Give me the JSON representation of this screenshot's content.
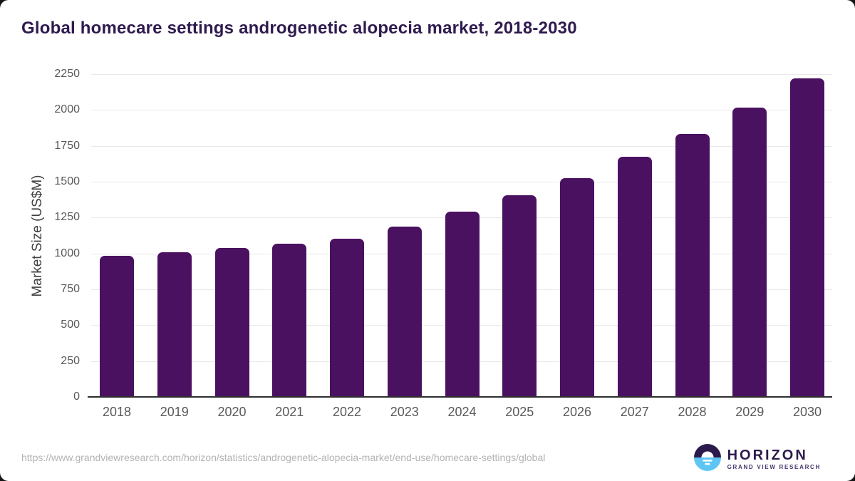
{
  "page": {
    "title": "Global homecare settings androgenetic alopecia market, 2018-2030"
  },
  "chart_data": {
    "type": "bar",
    "title": "Global homecare settings androgenetic alopecia market, 2018-2030",
    "categories": [
      "2018",
      "2019",
      "2020",
      "2021",
      "2022",
      "2023",
      "2024",
      "2025",
      "2026",
      "2027",
      "2028",
      "2029",
      "2030"
    ],
    "values": [
      976,
      1005,
      1033,
      1065,
      1097,
      1181,
      1284,
      1400,
      1519,
      1668,
      1827,
      2010,
      2217
    ],
    "xlabel": "",
    "ylabel": "Market Size (US$M)",
    "ylim": [
      0,
      2250
    ],
    "ytick_step": 250,
    "grid": true,
    "legend": "none",
    "bar_color": "#4a1161"
  },
  "footer": {
    "source_url": "https://www.grandviewresearch.com/horizon/statistics/androgenetic-alopecia-market/end-use/homecare-settings/global",
    "logo": {
      "name": "HORIZON",
      "subtitle": "GRAND VIEW RESEARCH",
      "icon": "horizon-sun-over-water-icon",
      "icon_top_color": "#2b1b4c",
      "icon_bottom_color": "#5ec6f2"
    }
  },
  "colors": {
    "title_text": "#2f1a4e",
    "bar": "#4a1161",
    "gridline": "#e9e9e9",
    "axis_line": "#2f2f2f",
    "tick_text": "#595959",
    "url_text": "#b3b3b3",
    "card_background": "#ffffff",
    "page_background": "#151515"
  }
}
